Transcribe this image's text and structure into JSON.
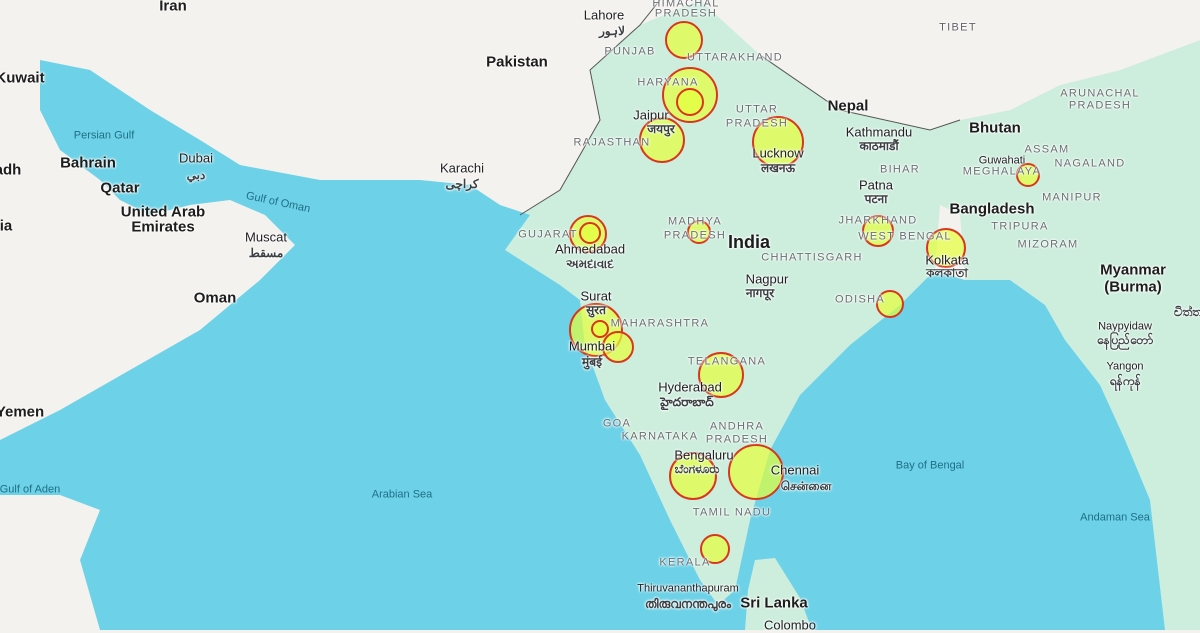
{
  "map": {
    "colors": {
      "sea": "#6dd2e7",
      "land": "#f4f2ee",
      "india_land": "#cdeedd",
      "marker_fill": "#e6ff3a",
      "marker_stroke": "#d9361e"
    },
    "markers": [
      {
        "name": "Himachal Pradesh"
      },
      {
        "name": "Delhi (large)"
      },
      {
        "name": "Delhi (small)"
      },
      {
        "name": "Jaipur"
      },
      {
        "name": "Lucknow"
      },
      {
        "name": "Ahmedabad (large)"
      },
      {
        "name": "Ahmedabad (small)"
      },
      {
        "name": "Madhya Pradesh"
      },
      {
        "name": "Mumbai (large)"
      },
      {
        "name": "Mumbai (small)"
      },
      {
        "name": "Pune"
      },
      {
        "name": "Hyderabad"
      },
      {
        "name": "Bengaluru"
      },
      {
        "name": "Chennai"
      },
      {
        "name": "Madurai"
      },
      {
        "name": "Jharkhand"
      },
      {
        "name": "Kolkata"
      },
      {
        "name": "Odisha"
      },
      {
        "name": "Meghalaya"
      }
    ]
  },
  "countries": {
    "iran": "Iran",
    "pakistan": "Pakistan",
    "nepal": "Nepal",
    "india": "India",
    "bhutan": "Bhutan",
    "bangladesh": "Bangladesh",
    "myanmar": "Myanmar",
    "myanmar2": "(Burma)",
    "sri_lanka": "Sri Lanka",
    "oman": "Oman",
    "yemen": "Yemen",
    "kuwait": "Kuwait",
    "bahrain": "Bahrain",
    "qatar": "Qatar",
    "uae1": "United Arab",
    "uae2": "Emirates",
    "tibet": "TIBET",
    "saudi_partial": "adh",
    "saudi_partial2": "ia"
  },
  "cities": {
    "lahore": "Lahore",
    "lahore_n": "لاہور",
    "karachi": "Karachi",
    "karachi_n": "کراچی",
    "dubai": "Dubai",
    "dubai_n": "دبي",
    "muscat": "Muscat",
    "muscat_n": "مسقط",
    "jaipur": "Jaipur",
    "jaipur_n": "जयपुर",
    "lucknow": "Lucknow",
    "lucknow_n": "लखनऊ",
    "kathmandu": "Kathmandu",
    "kathmandu_n": "काठमाडौं",
    "patna": "Patna",
    "patna_n": "पटना",
    "ahmedabad": "Ahmedabad",
    "ahmedabad_n": "અમદાવાદ",
    "surat": "Surat",
    "surat_n": "सुरत",
    "mumbai": "Mumbai",
    "mumbai_n": "मुंबई",
    "nagpur": "Nagpur",
    "nagpur_n": "नागपूर",
    "hyderabad": "Hyderabad",
    "hyderabad_n": "హైదరాబాద్",
    "bengaluru": "Bengaluru",
    "bengaluru_n": "ಬೆಂಗಳೂರು",
    "chennai": "Chennai",
    "chennai_n": "சென்னை",
    "kolkata": "Kolkata",
    "kolkata_n": "কলকাতা",
    "guwahati": "Guwahati",
    "thiruvananthapuram": "Thiruvananthapuram",
    "thiruvananthapuram_n": "തിരുവനന്തപുരം",
    "naypyidaw": "Naypyidaw",
    "naypyidaw_n": "နေပြည်တော်",
    "yangon": "Yangon",
    "yangon_n": "ရန်ကုန်",
    "colombo": "Colombo",
    "chittagong_partial": "චිත්‍ත"
  },
  "states": {
    "himachal1": "HIMACHAL",
    "himachal2": "PRADESH",
    "punjab": "PUNJAB",
    "uttarakhand": "UTTARAKHAND",
    "haryana": "HARYANA",
    "up1": "UTTAR",
    "up2": "PRADESH",
    "rajasthan": "RAJASTHAN",
    "gujarat": "GUJARAT",
    "mp1": "MADHYA",
    "mp2": "PRADESH",
    "chhattisgarh": "CHHATTISGARH",
    "jharkhand": "JHARKHAND",
    "west_bengal": "WEST BENGAL",
    "bihar": "BIHAR",
    "odisha": "ODISHA",
    "maharashtra": "MAHARASHTRA",
    "telangana": "TELANGANA",
    "ap1": "ANDHRA",
    "ap2": "PRADESH",
    "goa": "GOA",
    "karnataka": "KARNATAKA",
    "tamil_nadu": "TAMIL NADU",
    "kerala": "KERALA",
    "assam": "ASSAM",
    "nagaland": "NAGALAND",
    "arunachal1": "ARUNACHAL",
    "arunachal2": "PRADESH",
    "meghalaya": "MEGHALAYA",
    "tripura": "TRIPURA",
    "manipur": "MANIPUR",
    "mizoram": "MIZORAM"
  },
  "water": {
    "persian_gulf": "Persian Gulf",
    "gulf_of_oman": "Gulf of Oman",
    "arabian_sea": "Arabian Sea",
    "bay_of_bengal": "Bay of Bengal",
    "andaman_sea": "Andaman Sea",
    "gulf_of_aden": "Gulf of Aden"
  }
}
